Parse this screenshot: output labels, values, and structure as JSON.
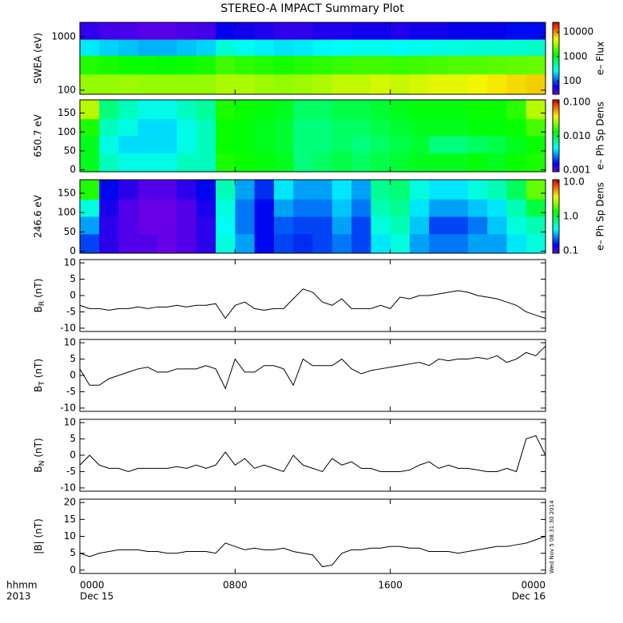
{
  "time_label": "hhmm",
  "year_label": "2013",
  "start_date": "Dec 15",
  "end_date": "Dec 16",
  "timestamp": "Wed Nov 5 08:31:30 2014",
  "chart_data": [
    {
      "type": "heatmap",
      "title": "STEREO-A IMPACT Summary Plot",
      "ylabel": "SWEA (eV)",
      "colorbar_label": "e– Flux",
      "ylog": true,
      "zlog": true,
      "xlim": [
        0,
        24
      ],
      "ylim": [
        84,
        1860
      ],
      "yticks": [
        100,
        1000
      ],
      "y_bins": [
        84,
        200,
        450,
        900,
        1860
      ],
      "zlim": [
        29,
        25000
      ],
      "zticks": [
        100,
        1000,
        10000
      ],
      "z": [
        [
          3000,
          3000,
          3200,
          3000,
          3000,
          3000,
          3000,
          3500,
          3500,
          3200,
          3000,
          3200,
          3500,
          4000,
          4000,
          4500,
          4000,
          4500,
          5000,
          5000,
          5500,
          6000,
          6500,
          7000
        ],
        [
          1500,
          1400,
          1300,
          1300,
          1200,
          1300,
          1400,
          1800,
          1600,
          1500,
          1400,
          1500,
          1600,
          1700,
          1800,
          1800,
          1700,
          1800,
          1900,
          2000,
          2000,
          2100,
          2200,
          2300
        ],
        [
          250,
          220,
          200,
          180,
          180,
          200,
          220,
          350,
          300,
          260,
          240,
          250,
          270,
          280,
          300,
          300,
          280,
          300,
          320,
          330,
          340,
          350,
          360,
          380
        ],
        [
          45,
          40,
          38,
          35,
          35,
          38,
          40,
          60,
          55,
          50,
          45,
          45,
          50,
          50,
          55,
          55,
          50,
          55,
          55,
          60,
          60,
          60,
          65,
          65
        ]
      ]
    },
    {
      "type": "heatmap",
      "ylabel": "650.7 eV",
      "colorbar_label": "e– Ph Sp Dens",
      "zlog": true,
      "xlim": [
        0,
        24
      ],
      "ylim": [
        -5,
        185
      ],
      "yticks": [
        0,
        50,
        100,
        150
      ],
      "y_bins": [
        -5,
        45,
        90,
        135,
        185
      ],
      "zlim": [
        0.0009,
        0.118
      ],
      "zticks": [
        0.001,
        {
          "value": 0.01,
          "label": "0.010"
        },
        {
          "value": 0.1,
          "label": "0.100"
        }
      ],
      "z": [
        [
          0.012,
          0.006,
          0.005,
          0.005,
          0.005,
          0.006,
          0.006,
          0.015,
          0.014,
          0.013,
          0.012,
          0.008,
          0.009,
          0.01,
          0.009,
          0.01,
          0.011,
          0.012,
          0.012,
          0.012,
          0.013,
          0.012,
          0.014,
          0.015
        ],
        [
          0.012,
          0.005,
          0.004,
          0.004,
          0.004,
          0.005,
          0.006,
          0.014,
          0.013,
          0.012,
          0.011,
          0.008,
          0.008,
          0.009,
          0.008,
          0.009,
          0.01,
          0.011,
          0.008,
          0.008,
          0.009,
          0.01,
          0.012,
          0.014
        ],
        [
          0.015,
          0.006,
          0.005,
          0.004,
          0.004,
          0.005,
          0.006,
          0.014,
          0.013,
          0.012,
          0.011,
          0.008,
          0.008,
          0.009,
          0.009,
          0.01,
          0.011,
          0.012,
          0.012,
          0.012,
          0.013,
          0.013,
          0.014,
          0.018
        ],
        [
          0.03,
          0.008,
          0.006,
          0.005,
          0.005,
          0.006,
          0.007,
          0.015,
          0.014,
          0.013,
          0.012,
          0.009,
          0.009,
          0.01,
          0.01,
          0.011,
          0.012,
          0.013,
          0.013,
          0.013,
          0.014,
          0.014,
          0.016,
          0.03
        ]
      ]
    },
    {
      "type": "heatmap",
      "ylabel": "246.6 eV",
      "colorbar_label": "e– Ph Sp Dens",
      "zlog": true,
      "xlim": [
        0,
        24
      ],
      "ylim": [
        -5,
        185
      ],
      "yticks": [
        0,
        50,
        100,
        150
      ],
      "y_bins": [
        -5,
        45,
        90,
        135,
        185
      ],
      "zlim": [
        0.085,
        11.7
      ],
      "zticks": [
        0.1,
        {
          "value": 1,
          "label": "1.0"
        },
        {
          "value": 10,
          "label": "10.0"
        }
      ],
      "z": [
        [
          0.2,
          0.12,
          0.1,
          0.1,
          0.09,
          0.1,
          0.12,
          0.5,
          0.3,
          0.15,
          0.2,
          0.18,
          0.2,
          0.25,
          0.2,
          0.4,
          0.5,
          0.3,
          0.25,
          0.25,
          0.3,
          0.3,
          0.4,
          0.5
        ],
        [
          0.3,
          0.12,
          0.1,
          0.09,
          0.09,
          0.1,
          0.12,
          0.45,
          0.25,
          0.15,
          0.22,
          0.2,
          0.2,
          0.3,
          0.2,
          0.5,
          0.6,
          0.35,
          0.2,
          0.2,
          0.25,
          0.35,
          0.5,
          0.6
        ],
        [
          0.5,
          0.13,
          0.1,
          0.09,
          0.09,
          0.1,
          0.13,
          0.5,
          0.25,
          0.15,
          0.3,
          0.25,
          0.25,
          0.35,
          0.25,
          0.6,
          0.7,
          0.4,
          0.3,
          0.3,
          0.35,
          0.4,
          0.6,
          1.0
        ],
        [
          1.5,
          0.15,
          0.12,
          0.1,
          0.1,
          0.12,
          0.15,
          0.6,
          0.3,
          0.18,
          0.4,
          0.3,
          0.3,
          0.4,
          0.3,
          0.7,
          0.8,
          0.5,
          0.4,
          0.4,
          0.5,
          0.6,
          0.9,
          2.0
        ]
      ]
    },
    {
      "type": "line",
      "ylabel": {
        "main": "B",
        "sub": "R",
        "unit": "(nT)"
      },
      "color": "#000000",
      "xlim": [
        0,
        24
      ],
      "ylim": [
        -11,
        11
      ],
      "yticks": [
        -10,
        -5,
        0,
        5,
        10
      ],
      "x": [
        0,
        0.5,
        1,
        1.5,
        2,
        2.5,
        3,
        3.5,
        4,
        4.5,
        5,
        5.5,
        6,
        6.5,
        7,
        7.5,
        8,
        8.5,
        9,
        9.5,
        10,
        10.5,
        11,
        11.5,
        12,
        12.5,
        13,
        13.5,
        14,
        14.5,
        15,
        15.5,
        16,
        16.5,
        17,
        17.5,
        18,
        18.5,
        19,
        19.5,
        20,
        20.5,
        21,
        21.5,
        22,
        22.5,
        23,
        23.5,
        24
      ],
      "values": [
        -3,
        -4,
        -4,
        -4.5,
        -4,
        -4,
        -3.5,
        -4,
        -3.5,
        -3.5,
        -3,
        -3.5,
        -3,
        -3,
        -2.5,
        -7,
        -3,
        -2,
        -4,
        -4.5,
        -4,
        -4,
        -1,
        2,
        1,
        -2,
        -3,
        -1,
        -4,
        -4,
        -4,
        -3,
        -4,
        -0.5,
        -1,
        0,
        0,
        0.5,
        1,
        1.5,
        1,
        0,
        -0.5,
        -1,
        -2,
        -3,
        -5,
        -6,
        -7
      ]
    },
    {
      "type": "line",
      "ylabel": {
        "main": "B",
        "sub": "T",
        "unit": "(nT)"
      },
      "color": "#000000",
      "xlim": [
        0,
        24
      ],
      "ylim": [
        -11,
        11
      ],
      "yticks": [
        -10,
        -5,
        0,
        5,
        10
      ],
      "x": [
        0,
        0.5,
        1,
        1.5,
        2,
        2.5,
        3,
        3.5,
        4,
        4.5,
        5,
        5.5,
        6,
        6.5,
        7,
        7.5,
        8,
        8.5,
        9,
        9.5,
        10,
        10.5,
        11,
        11.5,
        12,
        12.5,
        13,
        13.5,
        14,
        14.5,
        15,
        15.5,
        16,
        16.5,
        17,
        17.5,
        18,
        18.5,
        19,
        19.5,
        20,
        20.5,
        21,
        21.5,
        22,
        22.5,
        23,
        23.5,
        24
      ],
      "values": [
        2,
        -3,
        -3,
        -1,
        0,
        1,
        2,
        2.5,
        1,
        1,
        2,
        2,
        2,
        3,
        2,
        -4,
        5,
        1,
        1,
        3,
        3,
        2,
        -3,
        5,
        3,
        3,
        3,
        5,
        2,
        0.5,
        1.5,
        2,
        2.5,
        3,
        3.5,
        4,
        3,
        5,
        4.5,
        5,
        5,
        5.5,
        5,
        6,
        4,
        5,
        7,
        6,
        9
      ]
    },
    {
      "type": "line",
      "ylabel": {
        "main": "B",
        "sub": "N",
        "unit": "(nT)"
      },
      "color": "#000000",
      "xlim": [
        0,
        24
      ],
      "ylim": [
        -11,
        11
      ],
      "yticks": [
        -10,
        -5,
        0,
        5,
        10
      ],
      "x": [
        0,
        0.5,
        1,
        1.5,
        2,
        2.5,
        3,
        3.5,
        4,
        4.5,
        5,
        5.5,
        6,
        6.5,
        7,
        7.5,
        8,
        8.5,
        9,
        9.5,
        10,
        10.5,
        11,
        11.5,
        12,
        12.5,
        13,
        13.5,
        14,
        14.5,
        15,
        15.5,
        16,
        16.5,
        17,
        17.5,
        18,
        18.5,
        19,
        19.5,
        20,
        20.5,
        21,
        21.5,
        22,
        22.5,
        23,
        23.5,
        24
      ],
      "values": [
        -3,
        0,
        -3,
        -4,
        -4,
        -5,
        -4,
        -4,
        -4,
        -4,
        -3.5,
        -4,
        -3,
        -4,
        -3,
        1,
        -3,
        -1,
        -4,
        -3,
        -4,
        -5,
        0,
        -3,
        -4,
        -5,
        -1,
        -3,
        -2,
        -4,
        -4,
        -5,
        -5,
        -5,
        -4.5,
        -3,
        -2,
        -4,
        -3,
        -4,
        -4,
        -4.5,
        -5,
        -5,
        -4,
        -5,
        5,
        6,
        0
      ]
    },
    {
      "type": "line",
      "ylabel": {
        "main": "|B|",
        "sub": "",
        "unit": "(nT)"
      },
      "color": "#000000",
      "xlim": [
        0,
        24
      ],
      "ylim": [
        -1,
        21
      ],
      "yticks": [
        0,
        5,
        10,
        15,
        20
      ],
      "xticks": [
        {
          "value": 0,
          "label": "0000"
        },
        {
          "value": 8,
          "label": "0800"
        },
        {
          "value": 16,
          "label": "1600"
        },
        {
          "value": 24,
          "label": "0000"
        }
      ],
      "x": [
        0,
        0.5,
        1,
        1.5,
        2,
        2.5,
        3,
        3.5,
        4,
        4.5,
        5,
        5.5,
        6,
        6.5,
        7,
        7.5,
        8,
        8.5,
        9,
        9.5,
        10,
        10.5,
        11,
        11.5,
        12,
        12.5,
        13,
        13.5,
        14,
        14.5,
        15,
        15.5,
        16,
        16.5,
        17,
        17.5,
        18,
        18.5,
        19,
        19.5,
        20,
        20.5,
        21,
        21.5,
        22,
        22.5,
        23,
        23.5,
        24
      ],
      "values": [
        5,
        4,
        5,
        5.5,
        6,
        6,
        6,
        5.5,
        5.5,
        5,
        5,
        5.5,
        5.5,
        5.5,
        5,
        8,
        7,
        6,
        6.5,
        6,
        6,
        6.5,
        5.5,
        5,
        4.5,
        1,
        1.5,
        5,
        6,
        6,
        6.5,
        6.5,
        7,
        7,
        6.5,
        6.5,
        5.5,
        5.5,
        5.5,
        5,
        5.5,
        6,
        6.5,
        7,
        7,
        7.5,
        8,
        9,
        10
      ]
    }
  ]
}
